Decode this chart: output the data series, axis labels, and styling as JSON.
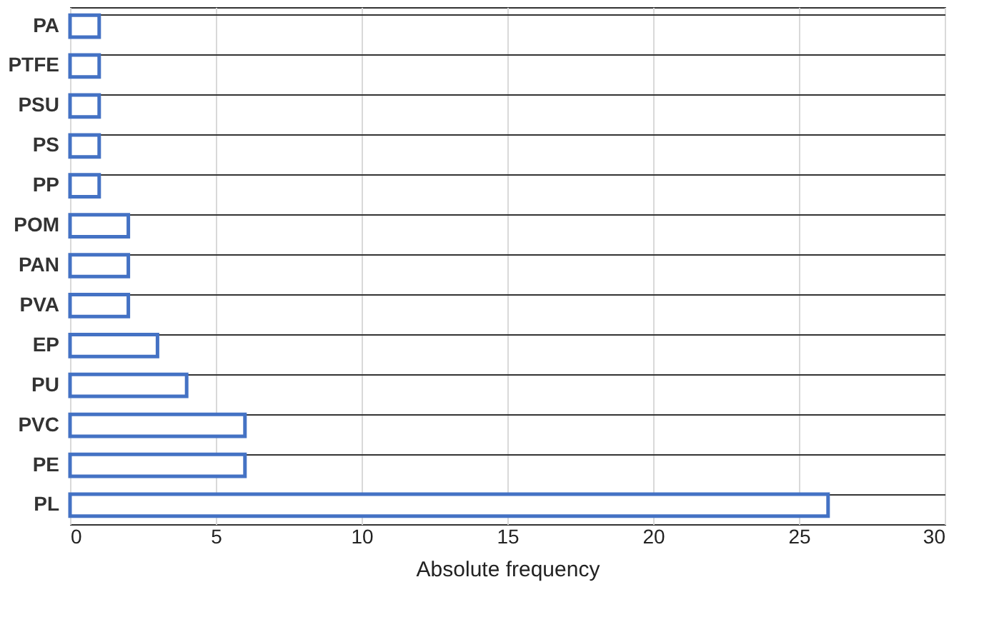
{
  "chart_data": {
    "type": "bar",
    "orientation": "horizontal",
    "xlabel": "Absolute frequency",
    "categories": [
      "PA",
      "PTFE",
      "PSU",
      "PS",
      "PP",
      "POM",
      "PAN",
      "PVA",
      "EP",
      "PU",
      "PVC",
      "PE",
      "PL"
    ],
    "values": [
      1,
      1,
      1,
      1,
      1,
      2,
      2,
      2,
      3,
      4,
      6,
      6,
      26
    ],
    "color": "#4472c4",
    "xlim": [
      0,
      30
    ],
    "xticks": [
      0,
      5,
      10,
      15,
      20,
      25,
      30
    ],
    "grid": true
  }
}
